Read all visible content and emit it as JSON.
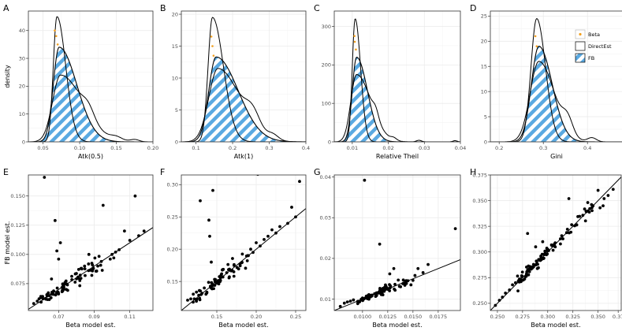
{
  "colors": {
    "fb_fill": "#5aa9e1",
    "beta_point": "#f2a01f",
    "line": "#000000",
    "grid": "#ebebeb",
    "panel_border": "#333333"
  },
  "legend": {
    "items": [
      "Beta",
      "DirectEst",
      "FB"
    ]
  },
  "chart_data": [
    {
      "label": "A",
      "type": "density",
      "xlabel": "Atk(0.5)",
      "ylabel": "density",
      "xlim": [
        0.03,
        0.2
      ],
      "ylim": [
        0,
        47
      ],
      "xticks": [
        0.05,
        0.1,
        0.15,
        0.2
      ],
      "xticklabels": [
        "0.05",
        "0.10",
        "0.15",
        "0.20"
      ],
      "yticks": [
        0,
        10,
        20,
        30,
        40
      ],
      "yticklabels": [
        "0",
        "10",
        "20",
        "30",
        "40"
      ],
      "fb": {
        "mode": 0.072,
        "height": 34,
        "sd": 0.008,
        "skew": 0.024
      },
      "beta": {
        "mode": 0.069,
        "height": 45,
        "sd": 0.005,
        "skew": 0.012
      },
      "direct": {
        "mode": 0.074,
        "height": 24,
        "sd": 0.011,
        "skew": 0.03,
        "bumps": [
          {
            "m": 0.112,
            "h": 3.5,
            "s": 0.008
          },
          {
            "m": 0.15,
            "h": 1.2,
            "s": 0.008
          },
          {
            "m": 0.175,
            "h": 0.8,
            "s": 0.006
          }
        ]
      },
      "beta_points": [
        {
          "x": 0.066,
          "y": 40
        },
        {
          "x": 0.068,
          "y": 38
        },
        {
          "x": 0.07,
          "y": 35
        }
      ]
    },
    {
      "label": "B",
      "type": "density",
      "xlabel": "Atk(1)",
      "ylabel": "",
      "xlim": [
        0.06,
        0.4
      ],
      "ylim": [
        0,
        20.5
      ],
      "xticks": [
        0.1,
        0.2,
        0.3,
        0.4
      ],
      "xticklabels": [
        "0.1",
        "0.2",
        "0.3",
        "0.4"
      ],
      "yticks": [
        0,
        5,
        10,
        15,
        20
      ],
      "yticklabels": [
        "0",
        "5",
        "10",
        "15",
        "20"
      ],
      "fb": {
        "mode": 0.155,
        "height": 13.3,
        "sd": 0.02,
        "skew": 0.06
      },
      "beta": {
        "mode": 0.145,
        "height": 19.5,
        "sd": 0.012,
        "skew": 0.03
      },
      "direct": {
        "mode": 0.16,
        "height": 11.5,
        "sd": 0.025,
        "skew": 0.06,
        "bumps": [
          {
            "m": 0.255,
            "h": 2.5,
            "s": 0.02
          },
          {
            "m": 0.31,
            "h": 0.8,
            "s": 0.015
          }
        ]
      },
      "beta_points": [
        {
          "x": 0.142,
          "y": 16.5
        },
        {
          "x": 0.145,
          "y": 15.0
        },
        {
          "x": 0.148,
          "y": 13.5
        }
      ]
    },
    {
      "label": "C",
      "type": "density",
      "xlabel": "Relative Theil",
      "ylabel": "",
      "xlim": [
        0.005,
        0.04
      ],
      "ylim": [
        0,
        340
      ],
      "xticks": [
        0.01,
        0.02,
        0.03,
        0.04
      ],
      "xticklabels": [
        "0.01",
        "0.02",
        "0.03",
        "0.04"
      ],
      "yticks": [
        0,
        100,
        200,
        300
      ],
      "yticklabels": [
        "0",
        "100",
        "200",
        "300"
      ],
      "fb": {
        "mode": 0.0112,
        "height": 220,
        "sd": 0.0012,
        "skew": 0.003
      },
      "beta": {
        "mode": 0.0108,
        "height": 320,
        "sd": 0.0008,
        "skew": 0.0015
      },
      "direct": {
        "mode": 0.0112,
        "height": 175,
        "sd": 0.0016,
        "skew": 0.004,
        "bumps": [
          {
            "m": 0.0165,
            "h": 20,
            "s": 0.0008
          },
          {
            "m": 0.0215,
            "h": 6,
            "s": 0.0008
          },
          {
            "m": 0.0285,
            "h": 4,
            "s": 0.0007
          },
          {
            "m": 0.0385,
            "h": 3,
            "s": 0.0006
          }
        ]
      },
      "beta_points": [
        {
          "x": 0.0106,
          "y": 275
        },
        {
          "x": 0.0107,
          "y": 260
        },
        {
          "x": 0.011,
          "y": 240
        }
      ]
    },
    {
      "label": "D",
      "type": "density",
      "xlabel": "Gini",
      "ylabel": "",
      "xlim": [
        0.18,
        0.48
      ],
      "ylim": [
        0,
        26
      ],
      "xticks": [
        0.2,
        0.3,
        0.4
      ],
      "xticklabels": [
        "0.2",
        "0.3",
        "0.4"
      ],
      "yticks": [
        0,
        5,
        10,
        15,
        20,
        25
      ],
      "yticklabels": [
        "0",
        "5",
        "10",
        "15",
        "20",
        "25"
      ],
      "fb": {
        "mode": 0.29,
        "height": 19,
        "sd": 0.017,
        "skew": 0.03
      },
      "beta": {
        "mode": 0.285,
        "height": 24.5,
        "sd": 0.013,
        "skew": 0.02
      },
      "direct": {
        "mode": 0.29,
        "height": 16,
        "sd": 0.02,
        "skew": 0.035,
        "bumps": [
          {
            "m": 0.355,
            "h": 3,
            "s": 0.012
          },
          {
            "m": 0.41,
            "h": 0.8,
            "s": 0.01
          }
        ]
      },
      "beta_points": [
        {
          "x": 0.282,
          "y": 21
        },
        {
          "x": 0.285,
          "y": 19
        }
      ]
    },
    {
      "label": "E",
      "type": "scatter",
      "xlabel": "Beta model est.",
      "ylabel": "FB model est.",
      "xlim": [
        0.053,
        0.123
      ],
      "ylim": [
        0.052,
        0.168
      ],
      "xticks": [
        0.07,
        0.09,
        0.11
      ],
      "xticklabels": [
        "0.07",
        "0.09",
        "0.11"
      ],
      "yticks": [
        0.075,
        0.1,
        0.125,
        0.15
      ],
      "yticklabels": [
        "0.075",
        "0.100",
        "0.125",
        "0.150"
      ],
      "line": {
        "slope": 1.0,
        "intercept": 0.0
      },
      "clusters": [
        {
          "xmin": 0.06,
          "xmax": 0.075,
          "n": 40,
          "spread": 0.004
        },
        {
          "xmin": 0.075,
          "xmax": 0.095,
          "n": 35,
          "spread": 0.006
        }
      ],
      "points": [
        [
          0.056,
          0.058
        ],
        [
          0.058,
          0.06
        ],
        [
          0.059,
          0.062
        ],
        [
          0.06,
          0.063
        ],
        [
          0.061,
          0.064
        ],
        [
          0.062,
          0.166
        ],
        [
          0.066,
          0.079
        ],
        [
          0.068,
          0.129
        ],
        [
          0.069,
          0.103
        ],
        [
          0.07,
          0.096
        ],
        [
          0.071,
          0.11
        ],
        [
          0.087,
          0.1
        ],
        [
          0.092,
          0.09
        ],
        [
          0.095,
          0.142
        ],
        [
          0.099,
          0.096
        ],
        [
          0.1,
          0.1
        ],
        [
          0.101,
          0.097
        ],
        [
          0.102,
          0.102
        ],
        [
          0.104,
          0.104
        ],
        [
          0.107,
          0.12
        ],
        [
          0.11,
          0.112
        ],
        [
          0.113,
          0.15
        ],
        [
          0.118,
          0.12
        ],
        [
          0.115,
          0.116
        ],
        [
          0.06,
          0.064
        ],
        [
          0.094,
          0.094
        ]
      ]
    },
    {
      "label": "F",
      "type": "scatter",
      "xlabel": "Beta model est.",
      "ylabel": "",
      "xlim": [
        0.105,
        0.263
      ],
      "ylim": [
        0.105,
        0.315
      ],
      "xticks": [
        0.15,
        0.2,
        0.25
      ],
      "xticklabels": [
        "0.15",
        "0.20",
        "0.25"
      ],
      "yticks": [
        0.15,
        0.2,
        0.25,
        0.3
      ],
      "yticklabels": [
        "0.15",
        "0.20",
        "0.25",
        "0.30"
      ],
      "line": {
        "slope": 1.0,
        "intercept": 0.0
      },
      "clusters": [
        {
          "xmin": 0.12,
          "xmax": 0.155,
          "n": 40,
          "spread": 0.008
        },
        {
          "xmin": 0.155,
          "xmax": 0.19,
          "n": 30,
          "spread": 0.012
        }
      ],
      "points": [
        [
          0.113,
          0.121
        ],
        [
          0.117,
          0.123
        ],
        [
          0.12,
          0.118
        ],
        [
          0.129,
          0.275
        ],
        [
          0.14,
          0.245
        ],
        [
          0.141,
          0.22
        ],
        [
          0.143,
          0.18
        ],
        [
          0.145,
          0.291
        ],
        [
          0.19,
          0.19
        ],
        [
          0.193,
          0.2
        ],
        [
          0.196,
          0.195
        ],
        [
          0.2,
          0.21
        ],
        [
          0.202,
          0.316
        ],
        [
          0.205,
          0.205
        ],
        [
          0.21,
          0.215
        ],
        [
          0.215,
          0.22
        ],
        [
          0.22,
          0.23
        ],
        [
          0.225,
          0.225
        ],
        [
          0.23,
          0.235
        ],
        [
          0.24,
          0.24
        ],
        [
          0.245,
          0.265
        ],
        [
          0.255,
          0.305
        ],
        [
          0.25,
          0.25
        ]
      ]
    },
    {
      "label": "G",
      "type": "scatter",
      "xlabel": "Beta model est.",
      "ylabel": "",
      "xlim": [
        0.0072,
        0.0197
      ],
      "ylim": [
        0.0072,
        0.0405
      ],
      "xticks": [
        0.01,
        0.0125,
        0.015,
        0.0175
      ],
      "xticklabels": [
        "0.0100",
        "0.0125",
        "0.0150",
        "0.0175"
      ],
      "yticks": [
        0.01,
        0.02,
        0.03,
        0.04
      ],
      "yticklabels": [
        "0.01",
        "0.02",
        "0.03",
        "0.04"
      ],
      "line": {
        "slope": 1.0,
        "intercept": 0.0
      },
      "clusters": [
        {
          "xmin": 0.0095,
          "xmax": 0.0125,
          "n": 60,
          "spread": 0.0007
        },
        {
          "xmin": 0.0125,
          "xmax": 0.0145,
          "n": 20,
          "spread": 0.001
        }
      ],
      "points": [
        [
          0.0078,
          0.0082
        ],
        [
          0.0082,
          0.009
        ],
        [
          0.0085,
          0.0093
        ],
        [
          0.0088,
          0.0095
        ],
        [
          0.0091,
          0.0098
        ],
        [
          0.0102,
          0.0392
        ],
        [
          0.0117,
          0.0235
        ],
        [
          0.0127,
          0.0162
        ],
        [
          0.0131,
          0.0175
        ],
        [
          0.0145,
          0.0145
        ],
        [
          0.015,
          0.0146
        ],
        [
          0.0152,
          0.0158
        ],
        [
          0.0155,
          0.0175
        ],
        [
          0.016,
          0.0165
        ],
        [
          0.0165,
          0.0185
        ],
        [
          0.0192,
          0.0273
        ],
        [
          0.0148,
          0.0135
        ]
      ]
    },
    {
      "label": "H",
      "type": "scatter",
      "xlabel": "Beta model est.",
      "ylabel": "",
      "xlim": [
        0.243,
        0.373
      ],
      "ylim": [
        0.243,
        0.375
      ],
      "xticks": [
        0.25,
        0.275,
        0.3,
        0.325,
        0.35,
        0.37
      ],
      "xticklabels": [
        "0.250",
        "0.275",
        "0.300",
        "0.325",
        "0.350",
        "0.37"
      ],
      "yticks": [
        0.25,
        0.275,
        0.3,
        0.325,
        0.35,
        0.375
      ],
      "yticklabels": [
        "0.250",
        "0.275",
        "0.300",
        "0.325",
        "0.350",
        "0.375"
      ],
      "line": {
        "slope": 1.0,
        "intercept": 0.0
      },
      "clusters": [
        {
          "xmin": 0.27,
          "xmax": 0.31,
          "n": 70,
          "spread": 0.004
        },
        {
          "xmin": 0.31,
          "xmax": 0.345,
          "n": 25,
          "spread": 0.005
        }
      ],
      "points": [
        [
          0.248,
          0.248
        ],
        [
          0.252,
          0.253
        ],
        [
          0.255,
          0.256
        ],
        [
          0.258,
          0.26
        ],
        [
          0.262,
          0.263
        ],
        [
          0.265,
          0.268
        ],
        [
          0.268,
          0.27
        ],
        [
          0.28,
          0.318
        ],
        [
          0.288,
          0.305
        ],
        [
          0.295,
          0.31
        ],
        [
          0.321,
          0.352
        ],
        [
          0.35,
          0.36
        ],
        [
          0.352,
          0.343
        ],
        [
          0.355,
          0.345
        ],
        [
          0.36,
          0.355
        ],
        [
          0.365,
          0.361
        ],
        [
          0.356,
          0.352
        ],
        [
          0.34,
          0.34
        ],
        [
          0.345,
          0.345
        ]
      ]
    }
  ]
}
